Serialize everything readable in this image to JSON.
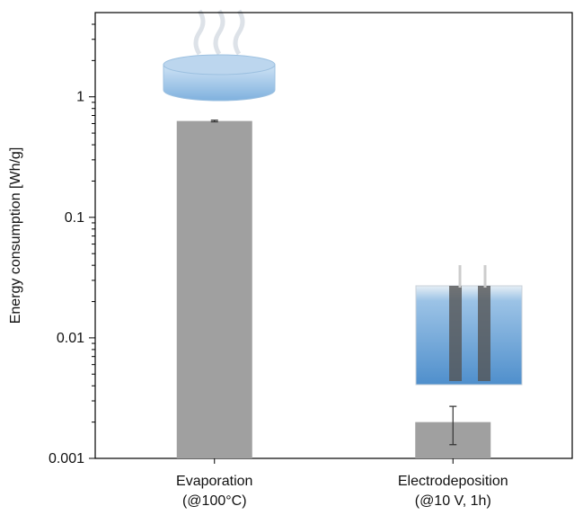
{
  "chart_data": {
    "type": "bar",
    "y_label": "Energy consumption [Wh/g]",
    "categories": [
      "Evaporation\n(@100°C)",
      "Electrodeposition\n(@10 V, 1h)"
    ],
    "values": [
      0.63,
      0.002
    ],
    "errors": [
      0.01,
      0.0007
    ],
    "color": "#a0a0a0",
    "log_scale": true,
    "ylim": [
      0.001,
      5
    ],
    "yticks": [
      0.001,
      0.01,
      0.1,
      1
    ]
  }
}
